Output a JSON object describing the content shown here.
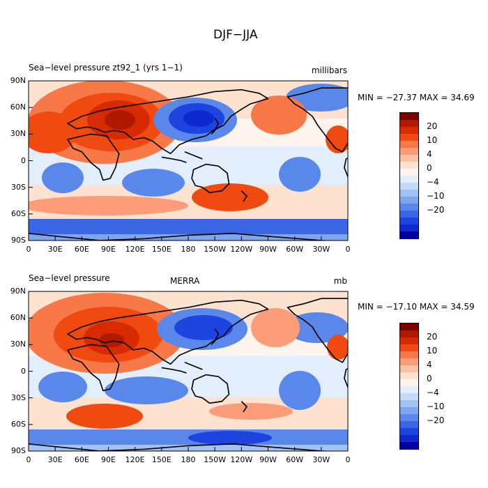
{
  "figure_title": "DJF−JJA",
  "panels": [
    {
      "title": "Sea−level pressure  zt92_1 (yrs 1−1)",
      "subtitle": "",
      "units": "millibars",
      "min_max": "MIN = −27.37 MAX =  34.69"
    },
    {
      "title": "Sea−level pressure",
      "subtitle": "MERRA",
      "units": "mb",
      "min_max": "MIN = −17.10 MAX =  34.59"
    }
  ],
  "axes": {
    "x_ticks": [
      "0",
      "30E",
      "60E",
      "90E",
      "120E",
      "150E",
      "180",
      "150W",
      "120W",
      "90W",
      "60W",
      "30W",
      "0"
    ],
    "y_ticks": [
      "90N",
      "60N",
      "30N",
      "0",
      "30S",
      "60S",
      "90S"
    ]
  },
  "colorbar": {
    "labels": [
      "20",
      "10",
      "4",
      "0",
      "−4",
      "−10",
      "−20"
    ],
    "colors": [
      "#7a0000",
      "#b01800",
      "#d82a00",
      "#f04a10",
      "#f87848",
      "#fc9c78",
      "#fdc0a0",
      "#fde2d0",
      "#fdf4ee",
      "#e2eefb",
      "#c4dbf8",
      "#a2c2f4",
      "#7ea6ee",
      "#5a88ea",
      "#3a66e6",
      "#1e44e0",
      "#0c2ad0",
      "#0000a0"
    ]
  },
  "chart_data": {
    "type": "heatmap",
    "xlim": [
      0,
      360
    ],
    "ylim": [
      -90,
      90
    ],
    "xlabel": "",
    "ylabel": ""
  }
}
